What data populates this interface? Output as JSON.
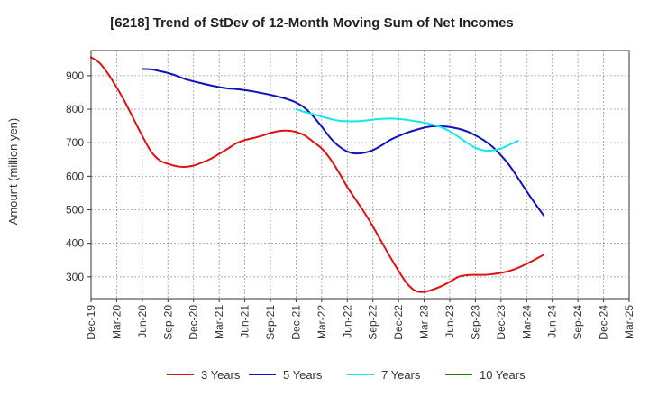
{
  "chart_data": {
    "type": "line",
    "title": "[6218]  Trend of StDev of 12-Month Moving Sum of Net Incomes",
    "xlabel": "",
    "ylabel": "Amount (million yen)",
    "ylim": [
      235,
      975
    ],
    "yticks": [
      300,
      400,
      500,
      600,
      700,
      800,
      900
    ],
    "xticks": [
      "Dec-19",
      "Mar-20",
      "Jun-20",
      "Sep-20",
      "Dec-20",
      "Mar-21",
      "Jun-21",
      "Sep-21",
      "Dec-21",
      "Mar-22",
      "Jun-22",
      "Sep-22",
      "Dec-22",
      "Mar-23",
      "Jun-23",
      "Sep-23",
      "Dec-23",
      "Mar-24",
      "Jun-24",
      "Sep-24",
      "Dec-24",
      "Mar-25"
    ],
    "grid": true,
    "legend_position": "bottom",
    "series": [
      {
        "name": "3 Years",
        "color": "#dd1111",
        "points": [
          [
            0,
            955
          ],
          [
            1,
            938
          ],
          [
            2,
            905
          ],
          [
            3,
            865
          ],
          [
            4,
            820
          ],
          [
            5,
            770
          ],
          [
            6,
            720
          ],
          [
            7,
            675
          ],
          [
            8,
            648
          ],
          [
            9,
            637
          ],
          [
            10,
            630
          ],
          [
            11,
            628
          ],
          [
            12,
            632
          ],
          [
            13,
            641
          ],
          [
            14,
            652
          ],
          [
            15,
            667
          ],
          [
            16,
            682
          ],
          [
            17,
            698
          ],
          [
            18,
            708
          ],
          [
            19,
            714
          ],
          [
            20,
            721
          ],
          [
            21,
            729
          ],
          [
            22,
            735
          ],
          [
            23,
            736
          ],
          [
            24,
            732
          ],
          [
            25,
            722
          ],
          [
            26,
            703
          ],
          [
            27,
            683
          ],
          [
            28,
            652
          ],
          [
            29,
            612
          ],
          [
            30,
            568
          ],
          [
            31,
            530
          ],
          [
            32,
            492
          ],
          [
            33,
            450
          ],
          [
            34,
            405
          ],
          [
            35,
            360
          ],
          [
            36,
            318
          ],
          [
            37,
            280
          ],
          [
            38,
            258
          ],
          [
            39,
            255
          ],
          [
            40,
            262
          ],
          [
            41,
            272
          ],
          [
            42,
            285
          ],
          [
            43,
            300
          ],
          [
            44,
            305
          ],
          [
            45,
            306
          ],
          [
            46,
            306
          ],
          [
            47,
            308
          ],
          [
            48,
            312
          ],
          [
            49,
            318
          ],
          [
            50,
            327
          ],
          [
            51,
            339
          ],
          [
            52,
            352
          ],
          [
            53,
            366
          ]
        ]
      },
      {
        "name": "5 Years",
        "color": "#1111bb",
        "points": [
          [
            6,
            920
          ],
          [
            7,
            919
          ],
          [
            8,
            914
          ],
          [
            9,
            908
          ],
          [
            10,
            900
          ],
          [
            11,
            890
          ],
          [
            12,
            883
          ],
          [
            13,
            877
          ],
          [
            14,
            871
          ],
          [
            15,
            866
          ],
          [
            16,
            862
          ],
          [
            17,
            860
          ],
          [
            18,
            857
          ],
          [
            19,
            853
          ],
          [
            20,
            848
          ],
          [
            21,
            843
          ],
          [
            22,
            837
          ],
          [
            23,
            830
          ],
          [
            24,
            820
          ],
          [
            25,
            804
          ],
          [
            26,
            779
          ],
          [
            27,
            748
          ],
          [
            28,
            715
          ],
          [
            29,
            690
          ],
          [
            30,
            674
          ],
          [
            31,
            668
          ],
          [
            32,
            670
          ],
          [
            33,
            678
          ],
          [
            34,
            692
          ],
          [
            35,
            708
          ],
          [
            36,
            720
          ],
          [
            37,
            730
          ],
          [
            38,
            738
          ],
          [
            39,
            745
          ],
          [
            40,
            749
          ],
          [
            41,
            749
          ],
          [
            42,
            747
          ],
          [
            43,
            742
          ],
          [
            44,
            734
          ],
          [
            45,
            722
          ],
          [
            46,
            707
          ],
          [
            47,
            688
          ],
          [
            48,
            662
          ],
          [
            49,
            632
          ],
          [
            50,
            594
          ],
          [
            51,
            555
          ],
          [
            52,
            518
          ],
          [
            53,
            483
          ]
        ]
      },
      {
        "name": "7 Years",
        "color": "#11e8f0",
        "points": [
          [
            24,
            800
          ],
          [
            25,
            792
          ],
          [
            26,
            785
          ],
          [
            27,
            778
          ],
          [
            28,
            771
          ],
          [
            29,
            766
          ],
          [
            30,
            764
          ],
          [
            31,
            764
          ],
          [
            32,
            766
          ],
          [
            33,
            769
          ],
          [
            34,
            771
          ],
          [
            35,
            772
          ],
          [
            36,
            771
          ],
          [
            37,
            768
          ],
          [
            38,
            764
          ],
          [
            39,
            760
          ],
          [
            40,
            754
          ],
          [
            41,
            746
          ],
          [
            42,
            734
          ],
          [
            43,
            718
          ],
          [
            44,
            700
          ],
          [
            45,
            685
          ],
          [
            46,
            677
          ],
          [
            47,
            677
          ],
          [
            48,
            683
          ],
          [
            49,
            694
          ],
          [
            50,
            706
          ]
        ]
      },
      {
        "name": "10 Years",
        "color": "#118811",
        "points": []
      }
    ]
  }
}
